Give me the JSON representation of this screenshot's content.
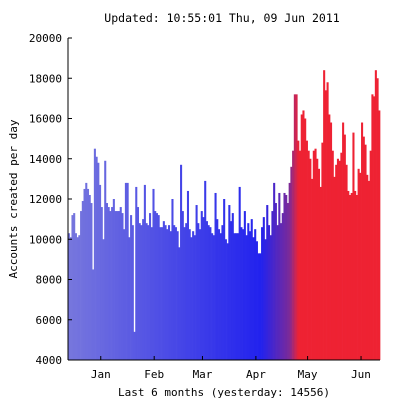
{
  "chart_data": {
    "type": "bar",
    "title": "Updated: 10:55:01 Thu, 09 Jun 2011",
    "xlabel": "Last 6 months (yesterday: 14556)",
    "ylabel": "Accounts created per day",
    "ylim": [
      4000,
      20000
    ],
    "y_ticks": [
      4000,
      6000,
      8000,
      10000,
      12000,
      14000,
      16000,
      18000,
      20000
    ],
    "x_tick_labels": [
      {
        "label": "Jan",
        "day": 19
      },
      {
        "label": "Feb",
        "day": 50
      },
      {
        "label": "Mar",
        "day": 78
      },
      {
        "label": "Apr",
        "day": 109
      },
      {
        "label": "May",
        "day": 139
      },
      {
        "label": "Jun",
        "day": 170
      }
    ],
    "grid": false,
    "colors": {
      "old": "#7777dd",
      "mid": "#2222ee",
      "transition": "#7a2a9a",
      "recent": "#ee2233",
      "axis": "#000000"
    },
    "values": [
      10300,
      10100,
      11200,
      11300,
      10300,
      10100,
      10200,
      11400,
      11900,
      12500,
      12800,
      12500,
      12200,
      11800,
      8500,
      14500,
      14100,
      13800,
      12700,
      11600,
      10000,
      13900,
      11800,
      11600,
      11400,
      11600,
      12000,
      11400,
      11400,
      11400,
      11600,
      11300,
      10500,
      12800,
      12800,
      10100,
      11200,
      10700,
      5400,
      12600,
      11600,
      10800,
      10700,
      11000,
      12700,
      10800,
      10700,
      11300,
      10600,
      12500,
      11400,
      11300,
      11200,
      10600,
      10600,
      10900,
      10700,
      10500,
      10700,
      10400,
      12000,
      10700,
      10600,
      10400,
      9600,
      13700,
      11400,
      10600,
      10800,
      12400,
      10500,
      10100,
      10400,
      10200,
      11700,
      10800,
      10500,
      11400,
      11100,
      12900,
      10900,
      10700,
      10600,
      10300,
      10200,
      12300,
      11000,
      10500,
      10300,
      10700,
      12000,
      10000,
      9800,
      11700,
      10900,
      11300,
      10300,
      10300,
      10300,
      12600,
      10600,
      10500,
      11400,
      10200,
      10800,
      10400,
      11000,
      10100,
      10500,
      9900,
      9300,
      9300,
      10600,
      11100,
      10000,
      11700,
      10700,
      10200,
      11400,
      12800,
      11800,
      10700,
      12300,
      10800,
      11300,
      12300,
      12200,
      11800,
      12800,
      13600,
      14400,
      17200,
      17200,
      14900,
      14400,
      16200,
      16400,
      16000,
      14900,
      14400,
      14000,
      13000,
      14400,
      14500,
      14000,
      13500,
      12600,
      14800,
      18400,
      17400,
      17800,
      16200,
      15800,
      14400,
      13100,
      13700,
      14000,
      13900,
      14300,
      15800,
      15200,
      13700,
      12400,
      12200,
      12300,
      15300,
      12400,
      12200,
      13500,
      13300,
      15800,
      15100,
      14700,
      13200,
      12900,
      14400,
      17200,
      17100,
      18400,
      18000,
      16400
    ]
  }
}
